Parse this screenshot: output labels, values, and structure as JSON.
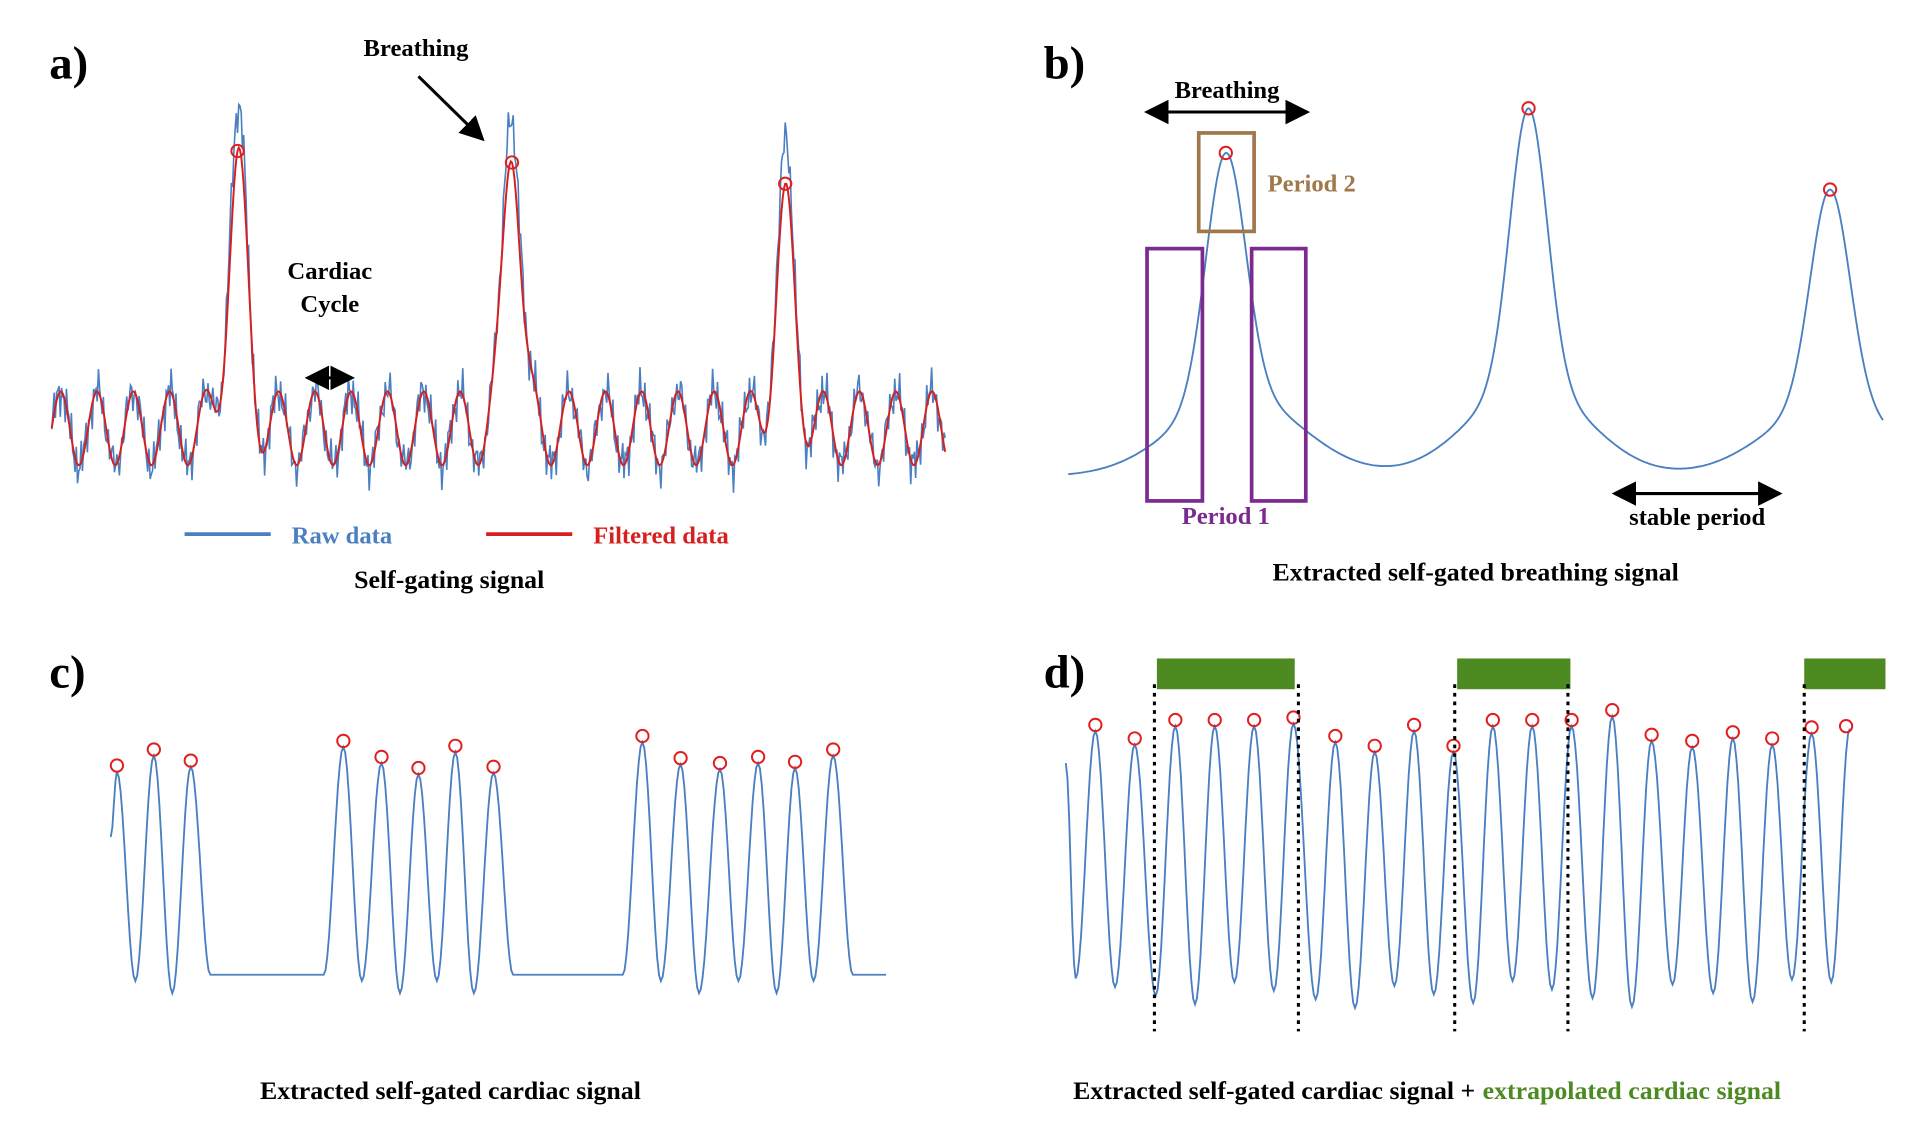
{
  "panels": [
    {
      "label": "a)",
      "annotations": [
        "Breathing",
        "Cardiac",
        "Cycle"
      ],
      "legend": [
        "Raw data",
        "Filtered data"
      ],
      "caption": "Self-gating signal"
    },
    {
      "label": "b)",
      "annotations": [
        "Breathing",
        "Period 2",
        "Period 1",
        "stable period"
      ],
      "caption": "Extracted self-gated breathing signal"
    },
    {
      "label": "c)",
      "caption": "Extracted self-gated cardiac signal"
    },
    {
      "label": "d)",
      "caption": [
        "Extracted self-gated cardiac signal +",
        "extrapolated cardiac signal"
      ]
    }
  ]
}
